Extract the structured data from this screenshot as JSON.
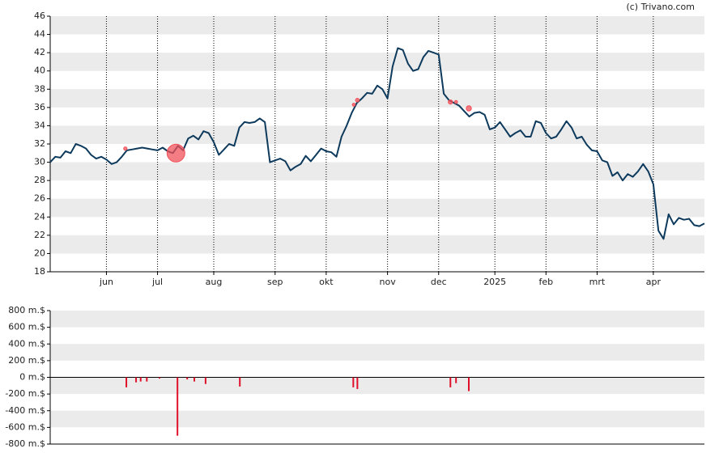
{
  "credit": "(c) Trivano.com",
  "chart_data": [
    {
      "type": "line",
      "color": "#0d3a5c",
      "values": [
        30.0,
        30.6,
        30.5,
        31.2,
        31.0,
        32.0,
        31.8,
        31.5,
        30.8,
        30.4,
        30.6,
        30.3,
        29.8,
        30.0,
        30.6,
        31.3,
        31.4,
        31.5,
        31.6,
        31.5,
        31.4,
        31.3,
        31.6,
        31.2,
        31.0,
        31.8,
        31.3,
        32.6,
        32.9,
        32.5,
        33.4,
        33.2,
        32.2,
        30.8,
        31.4,
        32.0,
        31.8,
        33.8,
        34.4,
        34.3,
        34.4,
        34.8,
        34.4,
        30.0,
        30.2,
        30.4,
        30.1,
        29.1,
        29.5,
        29.8,
        30.7,
        30.1,
        30.8,
        31.5,
        31.2,
        31.1,
        30.6,
        32.8,
        34.0,
        35.4,
        36.5,
        37.0,
        37.6,
        37.5,
        38.4,
        38.0,
        37.0,
        40.5,
        42.5,
        42.3,
        40.8,
        40.0,
        40.2,
        41.5,
        42.2,
        42.0,
        41.8,
        37.5,
        36.8,
        36.5,
        36.2,
        35.6,
        35.0,
        35.4,
        35.5,
        35.2,
        33.6,
        33.8,
        34.4,
        33.6,
        32.8,
        33.2,
        33.5,
        32.8,
        32.8,
        34.5,
        34.3,
        33.2,
        32.6,
        32.8,
        33.6,
        34.5,
        33.8,
        32.6,
        32.8,
        31.9,
        31.3,
        31.2,
        30.2,
        30.0,
        28.5,
        28.9,
        28.0,
        28.7,
        28.4,
        29.0,
        29.8,
        29.0,
        27.6,
        22.5,
        21.6,
        24.3,
        23.2,
        23.9,
        23.7,
        23.8,
        23.1,
        23.0,
        23.3
      ],
      "markers": {
        "color": "#f0505a",
        "x": [
          14.7,
          24.6,
          59.4,
          60.1,
          78.3,
          79.4,
          81.9
        ],
        "values": [
          31.5,
          31.0,
          36.3,
          36.8,
          36.6,
          36.6,
          35.9
        ],
        "sizes": [
          25,
          700,
          20,
          30,
          40,
          20,
          60
        ]
      },
      "xlim": [
        0,
        128
      ],
      "xticks": [
        {
          "value": 11,
          "label": "jun"
        },
        {
          "value": 21,
          "label": "jul"
        },
        {
          "value": 32,
          "label": "aug"
        },
        {
          "value": 44,
          "label": "sep"
        },
        {
          "value": 54,
          "label": "okt"
        },
        {
          "value": 66,
          "label": "nov"
        },
        {
          "value": 76,
          "label": "dec"
        },
        {
          "value": 87,
          "label": "2025"
        },
        {
          "value": 97,
          "label": "feb"
        },
        {
          "value": 107,
          "label": "mrt"
        },
        {
          "value": 118,
          "label": "apr"
        }
      ],
      "ylim": [
        18,
        46
      ],
      "yticks": [
        18,
        20,
        22,
        24,
        26,
        28,
        30,
        32,
        34,
        36,
        38,
        40,
        42,
        44,
        46
      ]
    },
    {
      "type": "bar",
      "color": "#e0102a",
      "x": [
        14.9,
        16.8,
        17.7,
        18.9,
        21.4,
        24.9,
        26.8,
        28.2,
        30.4,
        37.1,
        59.3,
        60.1,
        78.3,
        79.4,
        81.9
      ],
      "values": [
        -120,
        -60,
        -50,
        -50,
        -15,
        -700,
        -25,
        -50,
        -80,
        -110,
        -120,
        -140,
        -120,
        -70,
        -165
      ],
      "xlim": [
        0,
        128
      ],
      "ylim": [
        -800,
        800
      ],
      "yticks": [
        {
          "value": -800,
          "label": "-800 m.$"
        },
        {
          "value": -600,
          "label": "-600 m.$"
        },
        {
          "value": -400,
          "label": "-400 m.$"
        },
        {
          "value": -200,
          "label": "-200 m.$"
        },
        {
          "value": 0,
          "label": "0 m.$"
        },
        {
          "value": 200,
          "label": "200 m.$"
        },
        {
          "value": 400,
          "label": "400 m.$"
        },
        {
          "value": 600,
          "label": "600 m.$"
        },
        {
          "value": 800,
          "label": "800 m.$"
        }
      ]
    }
  ]
}
